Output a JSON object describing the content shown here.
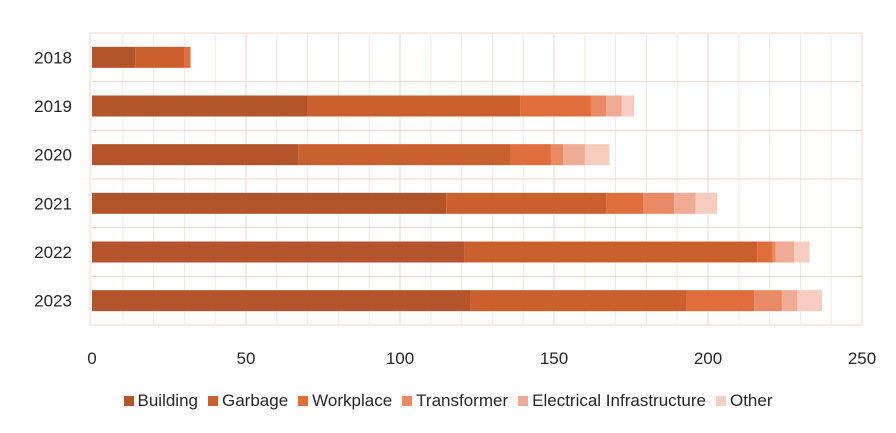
{
  "chart_data": {
    "type": "bar",
    "orientation": "horizontal",
    "stacked": true,
    "categories": [
      "2018",
      "2019",
      "2020",
      "2021",
      "2022",
      "2023"
    ],
    "series": [
      {
        "name": "Building",
        "color": "#b4542a",
        "values": [
          14,
          70,
          67,
          115,
          121,
          123
        ]
      },
      {
        "name": "Garbage",
        "color": "#c9602e",
        "values": [
          16,
          69,
          69,
          52,
          95,
          70
        ]
      },
      {
        "name": "Workplace",
        "color": "#e06d3c",
        "values": [
          2,
          23,
          13,
          12,
          5,
          22
        ]
      },
      {
        "name": "Transformer",
        "color": "#e98a65",
        "values": [
          0,
          5,
          4,
          10,
          1,
          9
        ]
      },
      {
        "name": "Electrical Infrastructure",
        "color": "#f0ab94",
        "values": [
          0,
          5,
          7,
          7,
          6,
          5
        ]
      },
      {
        "name": "Other",
        "color": "#f6cdbf",
        "values": [
          0,
          4,
          8,
          7,
          5,
          8
        ]
      }
    ],
    "xlim": [
      0,
      250
    ],
    "xticks": [
      "0",
      "50",
      "100",
      "150",
      "200",
      "250"
    ],
    "grid": true,
    "legend_position": "bottom"
  }
}
